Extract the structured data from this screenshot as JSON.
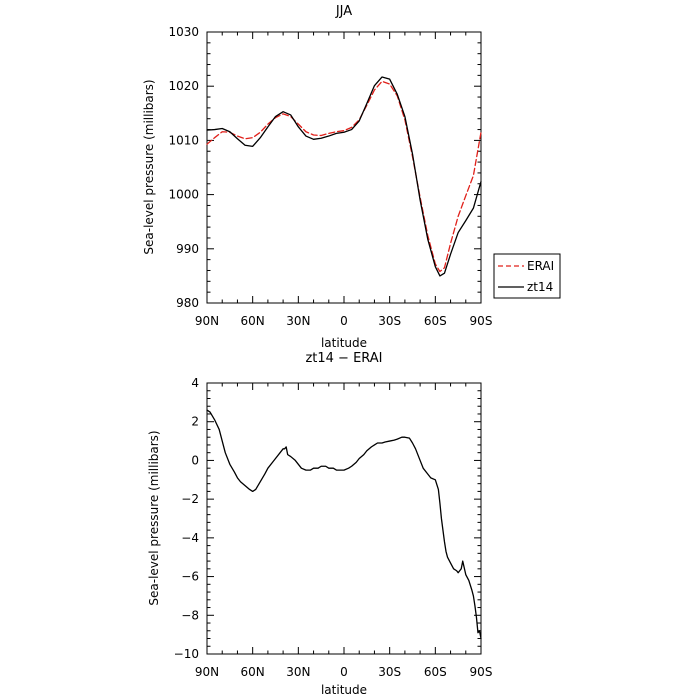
{
  "chart_data": [
    {
      "type": "line",
      "title": "JJA",
      "xlabel": "latitude",
      "ylabel": "Sea-level pressure (millibars)",
      "xlim": [
        90,
        -90
      ],
      "ylim": [
        980,
        1030
      ],
      "yticks": [
        980,
        990,
        1000,
        1010,
        1020,
        1030
      ],
      "xticks": [
        90,
        60,
        30,
        0,
        -30,
        -60,
        -90
      ],
      "xtick_labels": [
        "90N",
        "60N",
        "30N",
        "0",
        "30S",
        "60S",
        "90S"
      ],
      "legend": "right",
      "series": [
        {
          "name": "ERAI",
          "color": "#e0201a",
          "dash": "dashed",
          "x": [
            90,
            85,
            80,
            75,
            70,
            65,
            60,
            55,
            50,
            45,
            40,
            35,
            30,
            25,
            20,
            15,
            10,
            5,
            0,
            -5,
            -10,
            -15,
            -20,
            -25,
            -30,
            -35,
            -40,
            -45,
            -50,
            -55,
            -60,
            -63,
            -66,
            -70,
            -75,
            -80,
            -85,
            -90
          ],
          "y": [
            1009.3,
            1010.5,
            1011.6,
            1011.5,
            1010.8,
            1010.3,
            1010.5,
            1011.5,
            1013.0,
            1014.2,
            1014.9,
            1014.4,
            1013.0,
            1011.6,
            1011.0,
            1010.9,
            1011.3,
            1011.6,
            1011.8,
            1012.4,
            1013.8,
            1016.5,
            1019.3,
            1020.9,
            1020.4,
            1018.2,
            1013.8,
            1007.0,
            999.5,
            992.5,
            987.2,
            985.8,
            986.5,
            991.0,
            996.0,
            999.8,
            1003.5,
            1011.5
          ]
        },
        {
          "name": "zt14",
          "color": "#000000",
          "dash": "solid",
          "x": [
            90,
            85,
            80,
            75,
            70,
            65,
            60,
            55,
            50,
            45,
            40,
            35,
            30,
            25,
            20,
            15,
            10,
            5,
            0,
            -5,
            -10,
            -15,
            -20,
            -25,
            -30,
            -35,
            -40,
            -45,
            -50,
            -55,
            -60,
            -63,
            -66,
            -70,
            -75,
            -80,
            -85,
            -90
          ],
          "y": [
            1011.9,
            1012.0,
            1012.2,
            1011.6,
            1010.3,
            1009.1,
            1008.9,
            1010.5,
            1012.5,
            1014.4,
            1015.3,
            1014.7,
            1012.5,
            1010.8,
            1010.2,
            1010.4,
            1010.8,
            1011.3,
            1011.5,
            1012.0,
            1013.6,
            1016.8,
            1020.1,
            1021.7,
            1021.3,
            1018.5,
            1014.4,
            1007.5,
            999.0,
            991.8,
            986.7,
            985.0,
            985.5,
            989.0,
            993.0,
            995.2,
            997.5,
            1002.4
          ]
        }
      ]
    },
    {
      "type": "line",
      "title": "zt14 − ERAI",
      "xlabel": "latitude",
      "ylabel": "Sea-level pressure (millibars)",
      "xlim": [
        90,
        -90
      ],
      "ylim": [
        -10,
        4
      ],
      "yticks": [
        -10,
        -8,
        -6,
        -4,
        -2,
        0,
        2,
        4
      ],
      "xticks": [
        90,
        60,
        30,
        0,
        -30,
        -60,
        -90
      ],
      "xtick_labels": [
        "90N",
        "60N",
        "30N",
        "0",
        "30S",
        "60S",
        "90S"
      ],
      "series": [
        {
          "color": "#000000",
          "x": [
            90,
            88,
            85,
            82,
            80,
            78,
            75,
            72,
            70,
            68,
            65,
            62,
            60,
            58,
            55,
            52,
            50,
            47,
            45,
            42,
            40,
            39,
            38,
            37,
            35,
            32,
            30,
            28,
            25,
            22,
            20,
            17,
            15,
            12,
            10,
            7,
            5,
            2,
            0,
            -3,
            -5,
            -8,
            -10,
            -13,
            -15,
            -18,
            -20,
            -22,
            -25,
            -27,
            -30,
            -33,
            -35,
            -38,
            -40,
            -43,
            -45,
            -47,
            -50,
            -52,
            -55,
            -57,
            -60,
            -62,
            -63,
            -64,
            -65,
            -66,
            -67,
            -68,
            -70,
            -72,
            -74,
            -75,
            -76,
            -77,
            -78,
            -80,
            -82,
            -84,
            -85,
            -86,
            -87,
            -88,
            -89,
            -90
          ],
          "y": [
            2.6,
            2.5,
            2.1,
            1.6,
            1.0,
            0.4,
            -0.2,
            -0.6,
            -0.9,
            -1.1,
            -1.3,
            -1.5,
            -1.6,
            -1.5,
            -1.1,
            -0.7,
            -0.4,
            -0.1,
            0.1,
            0.4,
            0.6,
            0.6,
            0.7,
            0.3,
            0.2,
            0.0,
            -0.2,
            -0.4,
            -0.5,
            -0.5,
            -0.4,
            -0.4,
            -0.3,
            -0.3,
            -0.4,
            -0.4,
            -0.5,
            -0.5,
            -0.5,
            -0.4,
            -0.3,
            -0.1,
            0.1,
            0.3,
            0.5,
            0.7,
            0.8,
            0.9,
            0.9,
            0.95,
            1.0,
            1.05,
            1.1,
            1.2,
            1.2,
            1.15,
            0.9,
            0.6,
            0.0,
            -0.4,
            -0.7,
            -0.9,
            -1.0,
            -1.5,
            -2.2,
            -3.0,
            -3.6,
            -4.2,
            -4.7,
            -5.0,
            -5.3,
            -5.6,
            -5.7,
            -5.8,
            -5.7,
            -5.6,
            -5.2,
            -5.9,
            -6.2,
            -6.7,
            -7.0,
            -7.5,
            -8.1,
            -8.9,
            -8.8,
            -9.2
          ]
        }
      ]
    }
  ]
}
